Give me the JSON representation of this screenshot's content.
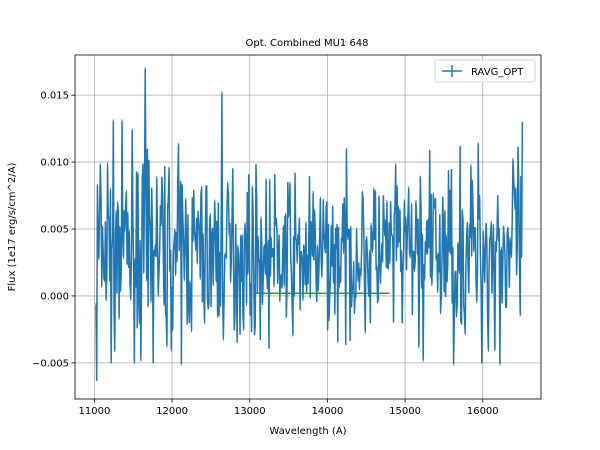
{
  "chart_data": {
    "type": "line",
    "title": "Opt. Combined MU1 648",
    "xlabel": "Wavelength (A)",
    "ylabel": "Flux (1e17 erg/s/cm^2/A)",
    "xlim": [
      10750,
      16750
    ],
    "ylim": [
      -0.0077,
      0.018
    ],
    "xticks": [
      11000,
      12000,
      13000,
      14000,
      15000,
      16000
    ],
    "xtick_labels": [
      "11000",
      "12000",
      "13000",
      "14000",
      "15000",
      "16000"
    ],
    "yticks": [
      -0.005,
      0.0,
      0.005,
      0.01,
      0.015
    ],
    "ytick_labels": [
      "−0.005",
      "0.000",
      "0.005",
      "0.010",
      "0.015"
    ],
    "grid": true,
    "legend": "top-right",
    "series": [
      {
        "name": "RAVG_OPT",
        "color": "#1f77b4",
        "error_bars": true,
        "x_range": [
          11020,
          16510
        ],
        "n_points": 590,
        "max_point": {
          "x": 11650,
          "y": 0.0169
        },
        "min_point": {
          "x": 11030,
          "y": -0.0063
        },
        "secondary_max": {
          "x": 12640,
          "y": 0.0151
        },
        "typical_range": [
          -0.004,
          0.012
        ]
      },
      {
        "name": "",
        "color": "#2ca02c",
        "style": "flat line",
        "x": [
          13080,
          14800
        ],
        "y": [
          0.0002,
          0.0002
        ]
      }
    ]
  }
}
